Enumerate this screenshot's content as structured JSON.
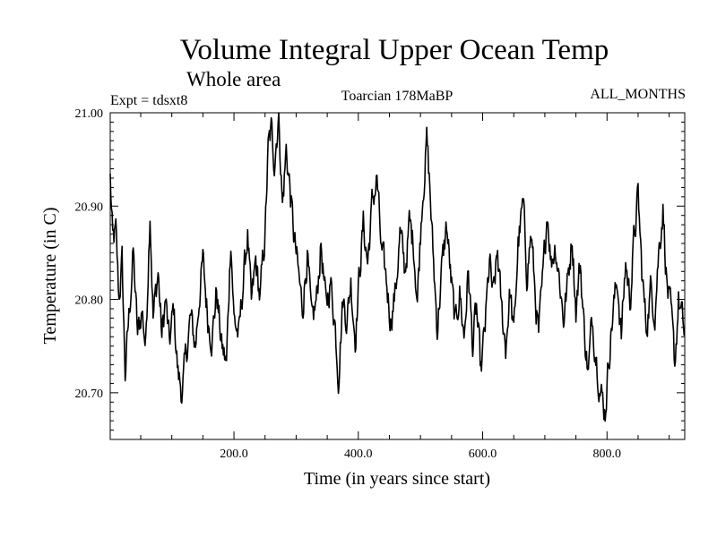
{
  "chart_data": {
    "type": "line",
    "title": "Volume Integral Upper Ocean Temp",
    "subtitle": "Whole area",
    "experiment_label": "Expt = tdsxt8",
    "period_label": "Toarcian 178MaBP",
    "months_label": "ALL_MONTHS",
    "xlabel": "Time (in years since start)",
    "ylabel": "Temperature (in C)",
    "xlim": [
      1,
      925
    ],
    "ylim": [
      20.65,
      21.0
    ],
    "x_ticks": [
      200,
      400,
      600,
      800
    ],
    "x_tick_labels": [
      "200.0",
      "400.0",
      "600.0",
      "800.0"
    ],
    "y_ticks": [
      20.7,
      20.8,
      20.9,
      21.0
    ],
    "y_tick_labels": [
      "20.70",
      "20.80",
      "20.90",
      "21.00"
    ],
    "grid": false,
    "series": [
      {
        "name": "Volume integral upper ocean temperature",
        "color": "#000000",
        "anchors": [
          [
            1,
            20.93
          ],
          [
            5,
            20.86
          ],
          [
            10,
            20.87
          ],
          [
            15,
            20.8
          ],
          [
            20,
            20.84
          ],
          [
            25,
            20.72
          ],
          [
            30,
            20.77
          ],
          [
            38,
            20.85
          ],
          [
            45,
            20.76
          ],
          [
            52,
            20.79
          ],
          [
            58,
            20.75
          ],
          [
            65,
            20.9
          ],
          [
            70,
            20.78
          ],
          [
            78,
            20.83
          ],
          [
            84,
            20.76
          ],
          [
            90,
            20.8
          ],
          [
            96,
            20.75
          ],
          [
            103,
            20.79
          ],
          [
            110,
            20.72
          ],
          [
            117,
            20.7
          ],
          [
            123,
            20.74
          ],
          [
            130,
            20.78
          ],
          [
            138,
            20.75
          ],
          [
            145,
            20.81
          ],
          [
            150,
            20.84
          ],
          [
            158,
            20.78
          ],
          [
            165,
            20.76
          ],
          [
            172,
            20.81
          ],
          [
            180,
            20.75
          ],
          [
            188,
            20.73
          ],
          [
            195,
            20.87
          ],
          [
            200,
            20.78
          ],
          [
            208,
            20.76
          ],
          [
            215,
            20.82
          ],
          [
            222,
            20.87
          ],
          [
            228,
            20.79
          ],
          [
            235,
            20.84
          ],
          [
            242,
            20.8
          ],
          [
            250,
            20.87
          ],
          [
            255,
            20.96
          ],
          [
            260,
            20.98
          ],
          [
            265,
            20.95
          ],
          [
            272,
            21.0
          ],
          [
            278,
            20.9
          ],
          [
            284,
            20.96
          ],
          [
            290,
            20.92
          ],
          [
            296,
            20.87
          ],
          [
            303,
            20.83
          ],
          [
            310,
            20.79
          ],
          [
            318,
            20.85
          ],
          [
            325,
            20.77
          ],
          [
            333,
            20.8
          ],
          [
            340,
            20.86
          ],
          [
            348,
            20.79
          ],
          [
            355,
            20.82
          ],
          [
            362,
            20.78
          ],
          [
            368,
            20.72
          ],
          [
            375,
            20.8
          ],
          [
            382,
            20.78
          ],
          [
            388,
            20.82
          ],
          [
            395,
            20.76
          ],
          [
            402,
            20.83
          ],
          [
            408,
            20.88
          ],
          [
            415,
            20.84
          ],
          [
            422,
            20.9
          ],
          [
            430,
            20.93
          ],
          [
            437,
            20.85
          ],
          [
            445,
            20.82
          ],
          [
            452,
            20.78
          ],
          [
            460,
            20.81
          ],
          [
            467,
            20.87
          ],
          [
            475,
            20.83
          ],
          [
            482,
            20.88
          ],
          [
            489,
            20.86
          ],
          [
            495,
            20.8
          ],
          [
            502,
            20.9
          ],
          [
            510,
            20.97
          ],
          [
            515,
            20.92
          ],
          [
            520,
            20.85
          ],
          [
            527,
            20.77
          ],
          [
            534,
            20.83
          ],
          [
            542,
            20.88
          ],
          [
            549,
            20.82
          ],
          [
            556,
            20.77
          ],
          [
            563,
            20.81
          ],
          [
            570,
            20.76
          ],
          [
            577,
            20.83
          ],
          [
            584,
            20.75
          ],
          [
            590,
            20.79
          ],
          [
            597,
            20.72
          ],
          [
            604,
            20.77
          ],
          [
            611,
            20.84
          ],
          [
            617,
            20.8
          ],
          [
            624,
            20.85
          ],
          [
            630,
            20.79
          ],
          [
            637,
            20.75
          ],
          [
            644,
            20.81
          ],
          [
            650,
            20.76
          ],
          [
            657,
            20.86
          ],
          [
            665,
            20.9
          ],
          [
            671,
            20.83
          ],
          [
            678,
            20.87
          ],
          [
            685,
            20.8
          ],
          [
            690,
            20.76
          ],
          [
            697,
            20.82
          ],
          [
            704,
            20.9
          ],
          [
            710,
            20.84
          ],
          [
            717,
            20.86
          ],
          [
            724,
            20.82
          ],
          [
            730,
            20.78
          ],
          [
            737,
            20.82
          ],
          [
            744,
            20.87
          ],
          [
            750,
            20.79
          ],
          [
            757,
            20.84
          ],
          [
            763,
            20.77
          ],
          [
            770,
            20.72
          ],
          [
            776,
            20.78
          ],
          [
            783,
            20.74
          ],
          [
            790,
            20.7
          ],
          [
            797,
            20.68
          ],
          [
            803,
            20.74
          ],
          [
            810,
            20.79
          ],
          [
            817,
            20.82
          ],
          [
            823,
            20.76
          ],
          [
            830,
            20.84
          ],
          [
            837,
            20.8
          ],
          [
            843,
            20.86
          ],
          [
            850,
            20.91
          ],
          [
            856,
            20.83
          ],
          [
            863,
            20.77
          ],
          [
            870,
            20.81
          ],
          [
            877,
            20.79
          ],
          [
            883,
            20.85
          ],
          [
            890,
            20.9
          ],
          [
            896,
            20.82
          ],
          [
            903,
            20.78
          ],
          [
            909,
            20.73
          ],
          [
            915,
            20.8
          ],
          [
            920,
            20.78
          ],
          [
            925,
            20.76
          ]
        ]
      }
    ]
  }
}
